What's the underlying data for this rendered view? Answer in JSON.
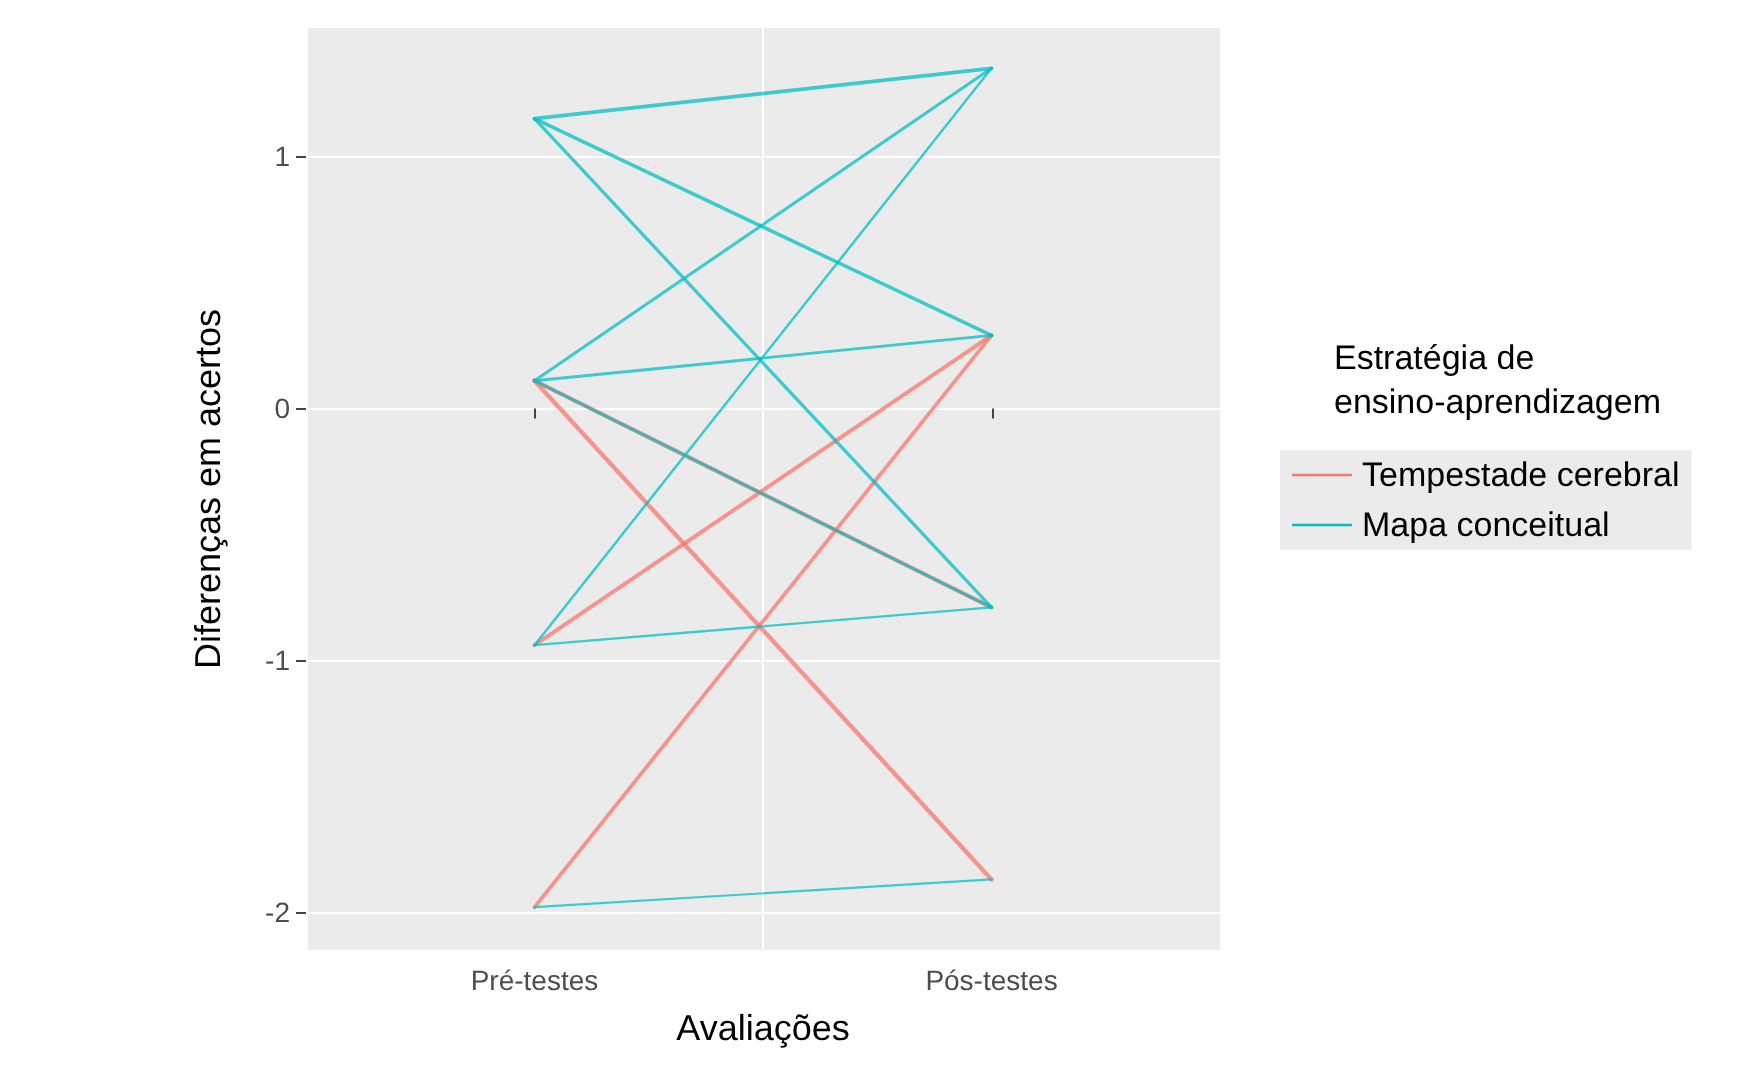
{
  "chart_data": {
    "type": "line",
    "xlabel": "Avaliações",
    "ylabel": "Diferenças em acertos",
    "legend_title": "Estratégia de\nensino-aprendizagem",
    "categories": [
      "Pré-testes",
      "Pós-testes"
    ],
    "series": [
      {
        "name": "Tempestade cerebral",
        "color": "#f8766d",
        "values": [
          0.11,
          -1.87
        ]
      },
      {
        "color": "#f8766d",
        "values": [
          0.11,
          -0.79
        ]
      },
      {
        "color": "#f8766d",
        "values": [
          -0.94,
          0.29
        ]
      },
      {
        "color": "#f8766d",
        "values": [
          -1.98,
          0.29
        ]
      },
      {
        "name": "Mapa conceitual",
        "color": "#00bfc4",
        "values": [
          1.15,
          1.35
        ]
      },
      {
        "color": "#00bfc4",
        "values": [
          1.15,
          0.29
        ]
      },
      {
        "color": "#00bfc4",
        "values": [
          1.15,
          -0.79
        ]
      },
      {
        "color": "#00bfc4",
        "values": [
          0.11,
          1.35
        ]
      },
      {
        "color": "#00bfc4",
        "values": [
          0.11,
          0.29
        ]
      },
      {
        "color": "#00bfc4",
        "values": [
          0.11,
          -0.79
        ]
      },
      {
        "color": "#00bfc4",
        "values": [
          -0.94,
          1.35
        ]
      },
      {
        "color": "#00bfc4",
        "values": [
          -0.94,
          -0.79
        ]
      },
      {
        "color": "#00bfc4",
        "values": [
          -1.98,
          -1.87
        ]
      }
    ],
    "ylim": [
      -2.15,
      1.51
    ],
    "yticks": [
      -2,
      -1,
      0,
      1
    ],
    "grid": true,
    "legend": "right",
    "marker": "none",
    "line_style": "solid"
  }
}
